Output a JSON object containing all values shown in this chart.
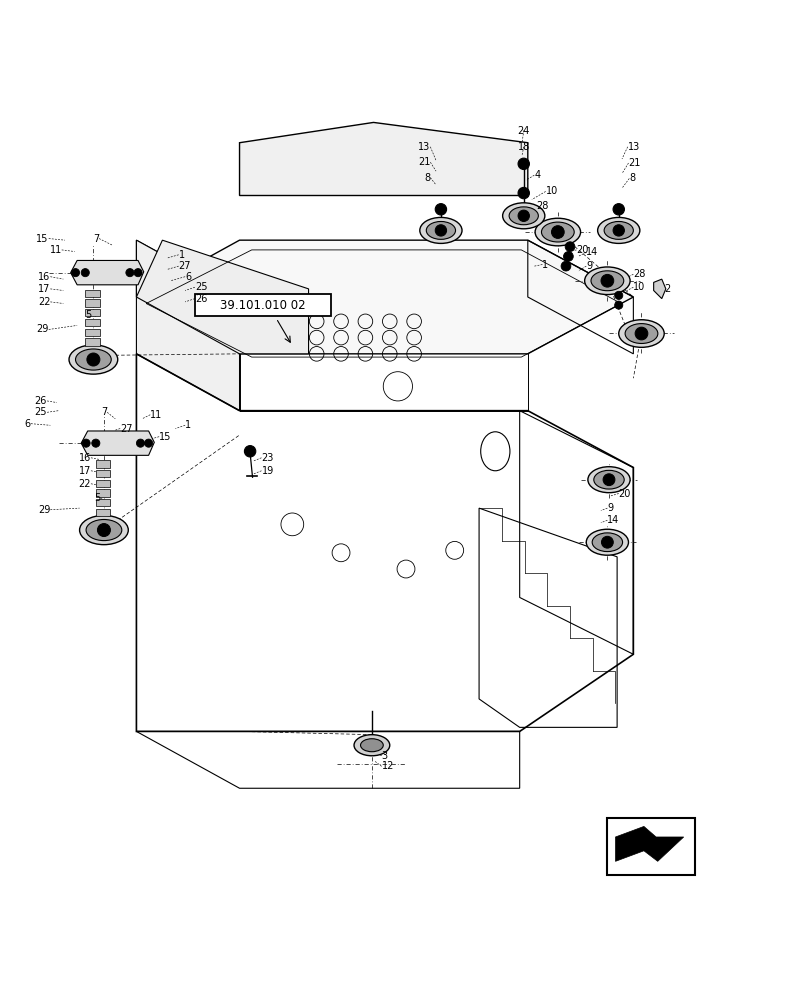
{
  "bg_color": "#ffffff",
  "line_color": "#000000",
  "label_box_text": "39.101.010 02"
}
